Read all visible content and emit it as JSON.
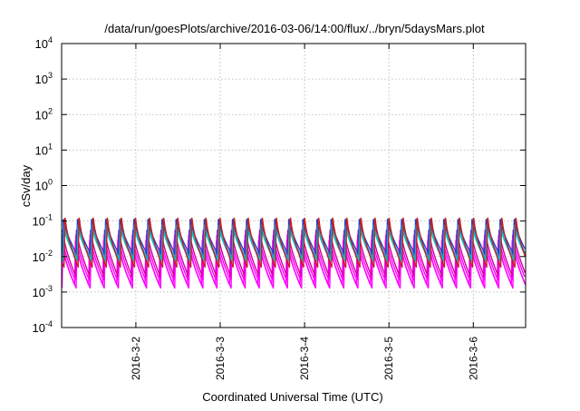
{
  "chart_data": {
    "type": "line",
    "title": "/data/run/goesPlots/archive/2016-03-06/14:00/flux/../bryn/5daysMars.plot",
    "xlabel": "Coordinated Universal Time (UTC)",
    "ylabel": "cSv/day",
    "yscale": "log",
    "grid": true,
    "x_unit": "days since 2016-03-01 00:00 UTC",
    "xlim": [
      0.12,
      5.62
    ],
    "ylim": [
      0.0001,
      10000
    ],
    "x_ticks": [
      {
        "x": 1,
        "label": "2016-3-2"
      },
      {
        "x": 2,
        "label": "2016-3-3"
      },
      {
        "x": 3,
        "label": "2016-3-4"
      },
      {
        "x": 4,
        "label": "2016-3-5"
      },
      {
        "x": 5,
        "label": "2016-3-6"
      }
    ],
    "y_ticks": [
      {
        "y": 0.0001,
        "base": "10",
        "exp": "-4"
      },
      {
        "y": 0.001,
        "base": "10",
        "exp": "-3"
      },
      {
        "y": 0.01,
        "base": "10",
        "exp": "-2"
      },
      {
        "y": 0.1,
        "base": "10",
        "exp": "-1"
      },
      {
        "y": 1,
        "base": "10",
        "exp": "0"
      },
      {
        "y": 10,
        "base": "10",
        "exp": "1"
      },
      {
        "y": 100,
        "base": "10",
        "exp": "2"
      },
      {
        "y": 1000,
        "base": "10",
        "exp": "3"
      },
      {
        "y": 10000,
        "base": "10",
        "exp": "4"
      }
    ],
    "sawtooth_period_days": 0.167,
    "series": [
      {
        "color": "#ff00ff",
        "peak": 0.028,
        "min": 0.0016
      },
      {
        "color": "#ff00ff",
        "peak": 0.04,
        "min": 0.0022
      },
      {
        "color": "#cc0099",
        "peak": 0.055,
        "min": 0.0028
      },
      {
        "color": "#ff00ff",
        "peak": 0.02,
        "min": 0.0013
      },
      {
        "color": "#1f3fd0",
        "peak": 0.11,
        "min": 0.012
      },
      {
        "color": "#1fa0c8",
        "peak": 0.075,
        "min": 0.009
      },
      {
        "color": "#00c8c8",
        "peak": 0.06,
        "min": 0.0075
      },
      {
        "color": "#c81e1e",
        "peak": 0.12,
        "min": 0.005
      }
    ]
  }
}
